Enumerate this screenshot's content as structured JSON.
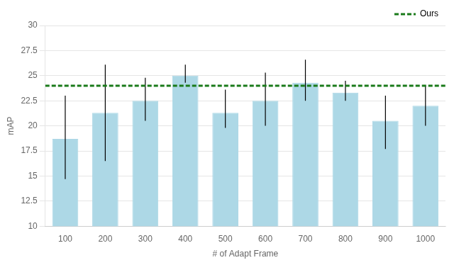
{
  "chart_data": {
    "type": "bar",
    "categories": [
      "100",
      "200",
      "300",
      "400",
      "500",
      "600",
      "700",
      "800",
      "900",
      "1000"
    ],
    "values": [
      18.7,
      21.3,
      22.5,
      25.0,
      21.3,
      22.5,
      24.3,
      23.3,
      20.5,
      22.0
    ],
    "error_upper": [
      4.3,
      4.8,
      2.3,
      1.1,
      2.3,
      2.8,
      2.3,
      1.2,
      2.5,
      2.0
    ],
    "error_lower": [
      4.0,
      4.8,
      2.0,
      0.7,
      1.5,
      2.5,
      1.8,
      0.8,
      2.8,
      2.0
    ],
    "color": "#add8e6",
    "lines": [
      {
        "name": "Ours",
        "value": 24.0,
        "color": "#1a7a1a",
        "line_style": "dashed"
      }
    ],
    "xlabel": "# of Adapt Frame",
    "ylabel": "mAP",
    "ylim": [
      10.0,
      30.0
    ],
    "yticks": [
      10.0,
      12.5,
      15.0,
      17.5,
      20.0,
      22.5,
      25.0,
      27.5,
      30.0
    ],
    "grid": true,
    "legend": "upper right"
  }
}
